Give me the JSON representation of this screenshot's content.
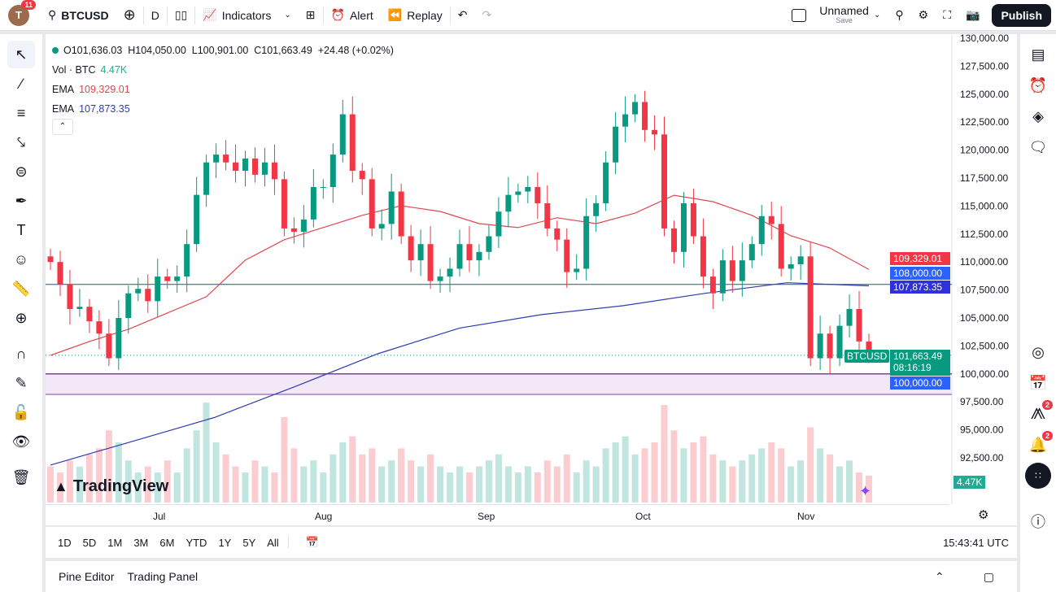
{
  "topbar": {
    "avatar": "T",
    "notifications": "11",
    "symbol": "BTCUSD",
    "interval": "D",
    "indicators": "Indicators",
    "alert": "Alert",
    "replay": "Replay",
    "layout_name": "Unnamed",
    "save": "Save",
    "publish": "Publish"
  },
  "legend": {
    "ohlc": "O101,636.03  H104,050.00  L100,901.00  C101,663.49  +24.48 (+0.02%)",
    "vol_label": "Vol · BTC",
    "vol_value": "4.47K",
    "ema1_label": "EMA",
    "ema1_value": "109,329.01",
    "ema2_label": "EMA",
    "ema2_value": "107,873.35"
  },
  "price_labels": {
    "ema1": "109,329.01",
    "hline": "108,000.00",
    "ema2": "107,873.35",
    "symbol": "BTCUSD",
    "last": "101,663.49",
    "countdown": "08:16:19",
    "zone": "100,000.00",
    "volume": "4.47K"
  },
  "watermark": "TradingView",
  "time_axis": {
    "labels": [
      "Jul",
      "Aug",
      "Sep",
      "Oct",
      "Nov"
    ],
    "clock": "15:43:41 UTC"
  },
  "ranges": [
    "1D",
    "5D",
    "1M",
    "3M",
    "6M",
    "YTD",
    "1Y",
    "5Y",
    "All"
  ],
  "bottom": {
    "pine": "Pine Editor",
    "trading": "Trading Panel"
  },
  "right_badges": {
    "ideas": "2",
    "alerts": "2"
  },
  "colors": {
    "up": "#089981",
    "down": "#f23645",
    "ema_fast": "#e0474f",
    "ema_slow": "#2f3bb0",
    "hline": "#2a4d8f",
    "zone": "#f3e8f8",
    "zone_border": "#7e3fb0"
  },
  "chart_data": {
    "type": "candlestick",
    "ylim": [
      90000,
      130000
    ],
    "y_ticks": [
      "130,000.00",
      "127,500.00",
      "125,000.00",
      "122,500.00",
      "120,000.00",
      "117,500.00",
      "115,000.00",
      "112,500.00",
      "110,000.00",
      "107,500.00",
      "105,000.00",
      "102,500.00",
      "100,000.00",
      "97,500.00",
      "95,000.00",
      "92,500.00"
    ],
    "closes": [
      110000,
      108000,
      105800,
      106000,
      104700,
      103600,
      101400,
      105000,
      107200,
      107600,
      106500,
      108700,
      108300,
      108700,
      111600,
      116000,
      118900,
      119600,
      118900,
      118150,
      119250,
      117800,
      118900,
      117400,
      113000,
      112700,
      113800,
      116700,
      116700,
      119600,
      123200,
      118150,
      117400,
      113000,
      113400,
      116300,
      112300,
      110150,
      111600,
      108300,
      108700,
      109400,
      111600,
      110150,
      110900,
      112300,
      114500,
      116000,
      116300,
      116700,
      115250,
      113000,
      112000,
      109100,
      109400,
      114100,
      115250,
      118900,
      122100,
      123200,
      124300,
      121800,
      121400,
      113000,
      110900,
      115250,
      112300,
      108700,
      107200,
      110150,
      108300,
      110150,
      111600,
      114100,
      113400,
      109400,
      109800,
      110500,
      101400,
      103600,
      101400,
      104300,
      105800,
      102900,
      101663.49
    ],
    "volume_k": [
      6,
      5,
      7,
      6,
      8,
      9,
      12,
      10,
      7,
      5,
      6,
      5,
      7,
      5,
      9,
      12,
      16.6,
      10,
      8,
      6,
      5,
      7,
      6,
      5,
      14.2,
      9,
      6,
      7,
      5,
      8,
      10,
      11,
      8,
      9,
      6,
      7,
      9,
      7,
      6,
      8,
      6,
      5,
      6,
      5,
      6,
      7,
      8,
      6,
      5,
      6,
      5,
      7,
      6,
      8,
      5,
      7,
      6,
      9,
      10,
      11,
      8,
      9,
      10,
      16.2,
      12,
      9,
      10,
      11,
      8,
      7,
      6,
      7,
      8,
      9,
      10,
      9,
      6,
      7,
      12.5,
      9,
      8,
      6,
      7,
      5,
      4.47
    ],
    "ema_fast": [
      101660,
      102900,
      103990,
      105440,
      106900,
      110170,
      111990,
      113080,
      114170,
      115030,
      114520,
      113430,
      113080,
      113950,
      113430,
      114370,
      115970,
      115390,
      114170,
      112340,
      111250,
      109329.01
    ],
    "ema_slow": [
      91850,
      93970,
      96100,
      98900,
      101800,
      104100,
      105300,
      106100,
      107200,
      108150,
      107873.35
    ],
    "hline": 108000,
    "zone": [
      98170,
      100000
    ]
  }
}
